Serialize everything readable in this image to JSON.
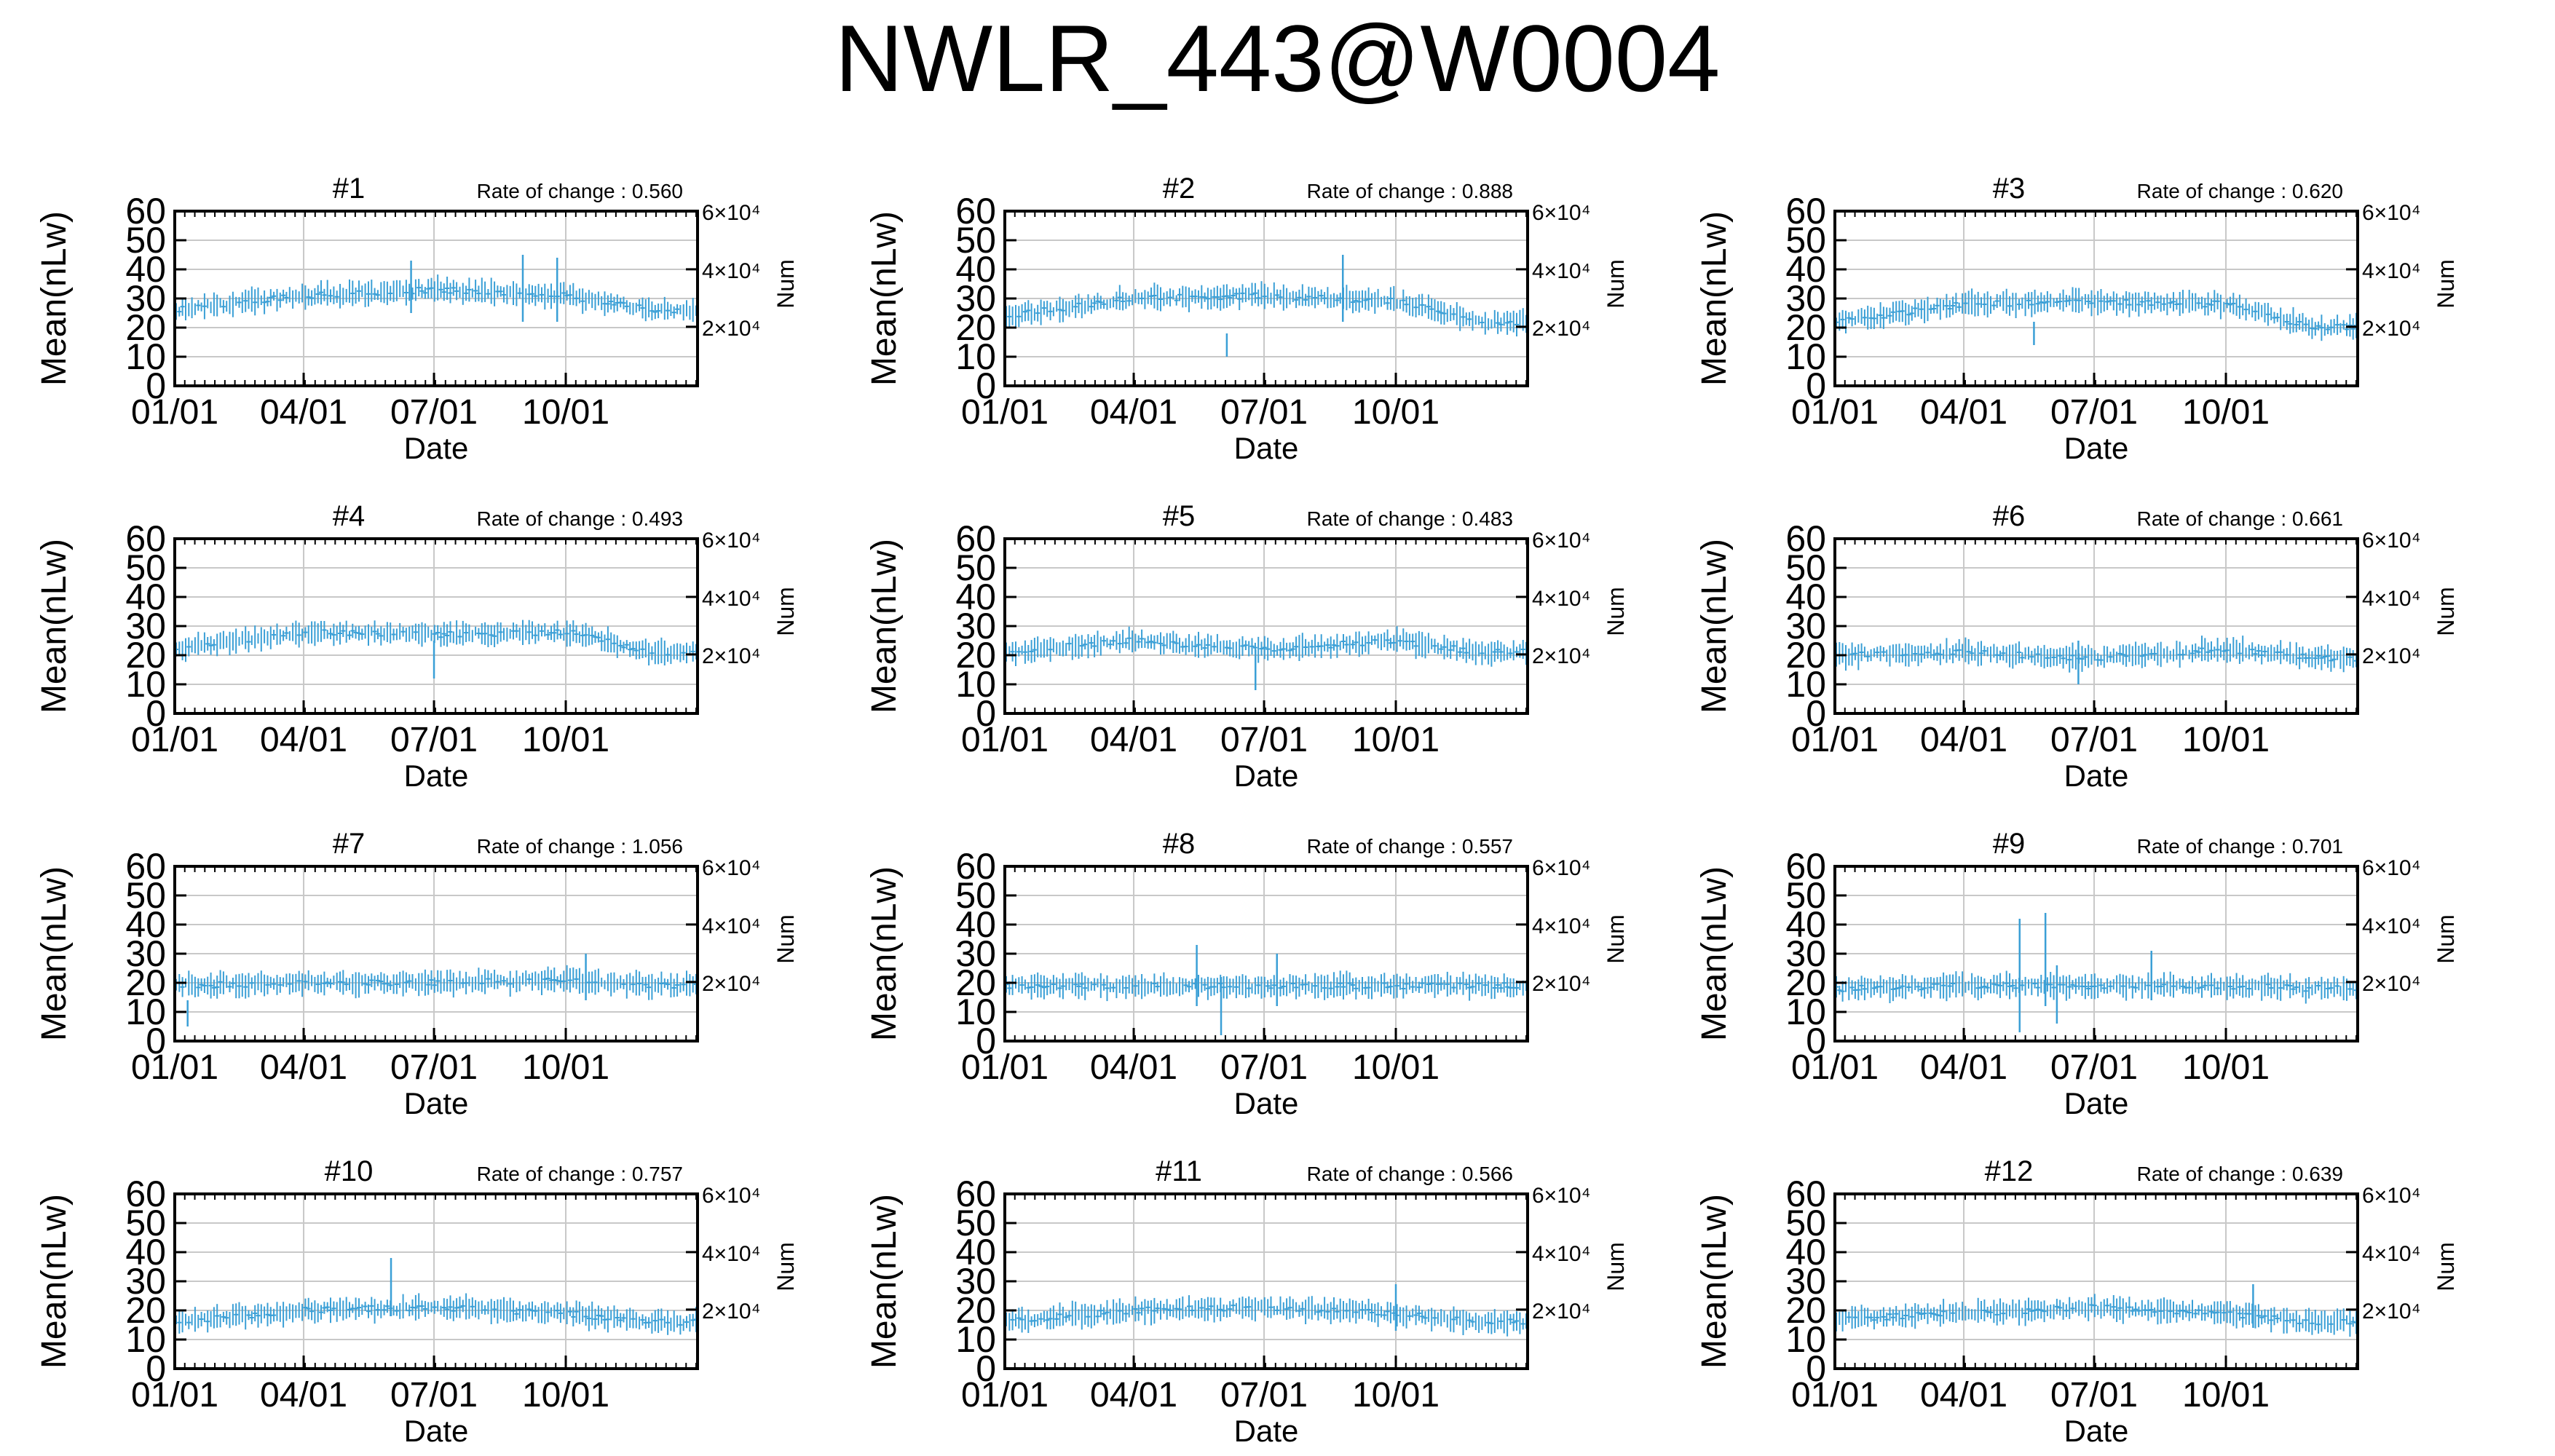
{
  "figure": {
    "title": "NWLR_443@W0004",
    "bar_color": "#3a9fd6",
    "grid_color": "#c8c8c8"
  },
  "chart_data": [
    {
      "type": "errorbar",
      "title": "#1",
      "rate_label": "Rate of change : 0.560",
      "xlabel": "Date",
      "ylabel": "Mean(nLw)",
      "y2label": "Num",
      "xticks": [
        "01/01",
        "04/01",
        "07/01",
        "10/01"
      ],
      "yticks": [
        0,
        10,
        20,
        30,
        40,
        50,
        60
      ],
      "ylim": [
        0,
        60
      ],
      "y2ticks": [
        "2×10⁴",
        "4×10⁴",
        "6×10⁴"
      ],
      "grid": true,
      "mean_profile": [
        {
          "month": "01",
          "value": 26
        },
        {
          "month": "04",
          "value": 31
        },
        {
          "month": "07",
          "value": 33
        },
        {
          "month": "10",
          "value": 31
        },
        {
          "month": "12",
          "value": 26
        }
      ],
      "spread": 6,
      "spikes": [
        {
          "date": "06/15",
          "high": 43,
          "low": 25
        },
        {
          "date": "09/01",
          "high": 45,
          "low": 22
        },
        {
          "date": "09/25",
          "high": 44,
          "low": 22
        }
      ]
    },
    {
      "type": "errorbar",
      "title": "#2",
      "rate_label": "Rate of change : 0.888",
      "xlabel": "Date",
      "ylabel": "Mean(nLw)",
      "y2label": "Num",
      "xticks": [
        "01/01",
        "04/01",
        "07/01",
        "10/01"
      ],
      "yticks": [
        0,
        10,
        20,
        30,
        40,
        50,
        60
      ],
      "ylim": [
        0,
        60
      ],
      "y2ticks": [
        "2×10⁴",
        "4×10⁴",
        "6×10⁴"
      ],
      "grid": true,
      "mean_profile": [
        {
          "month": "01",
          "value": 24
        },
        {
          "month": "04",
          "value": 30
        },
        {
          "month": "07",
          "value": 31
        },
        {
          "month": "10",
          "value": 29
        },
        {
          "month": "12",
          "value": 22
        }
      ],
      "spread": 6,
      "spikes": [
        {
          "date": "06/05",
          "high": 18,
          "low": 10
        },
        {
          "date": "08/25",
          "high": 45,
          "low": 22
        }
      ]
    },
    {
      "type": "errorbar",
      "title": "#3",
      "rate_label": "Rate of change : 0.620",
      "xlabel": "Date",
      "ylabel": "Mean(nLw)",
      "y2label": "Num",
      "xticks": [
        "01/01",
        "04/01",
        "07/01",
        "10/01"
      ],
      "yticks": [
        0,
        10,
        20,
        30,
        40,
        50,
        60
      ],
      "ylim": [
        0,
        60
      ],
      "y2ticks": [
        "2×10⁴",
        "4×10⁴",
        "6×10⁴"
      ],
      "grid": true,
      "mean_profile": [
        {
          "month": "01",
          "value": 22
        },
        {
          "month": "04",
          "value": 28
        },
        {
          "month": "07",
          "value": 29
        },
        {
          "month": "10",
          "value": 28
        },
        {
          "month": "12",
          "value": 20
        }
      ],
      "spread": 6,
      "spikes": [
        {
          "date": "05/20",
          "high": 22,
          "low": 14
        }
      ]
    },
    {
      "type": "errorbar",
      "title": "#4",
      "rate_label": "Rate of change : 0.493",
      "xlabel": "Date",
      "ylabel": "Mean(nLw)",
      "y2label": "Num",
      "xticks": [
        "01/01",
        "04/01",
        "07/01",
        "10/01"
      ],
      "yticks": [
        0,
        10,
        20,
        30,
        40,
        50,
        60
      ],
      "ylim": [
        0,
        60
      ],
      "y2ticks": [
        "2×10⁴",
        "4×10⁴",
        "6×10⁴"
      ],
      "grid": true,
      "mean_profile": [
        {
          "month": "01",
          "value": 22
        },
        {
          "month": "04",
          "value": 28
        },
        {
          "month": "07",
          "value": 27
        },
        {
          "month": "10",
          "value": 28
        },
        {
          "month": "12",
          "value": 21
        }
      ],
      "spread": 6,
      "spikes": [
        {
          "date": "07/01",
          "high": 25,
          "low": 12
        }
      ]
    },
    {
      "type": "errorbar",
      "title": "#5",
      "rate_label": "Rate of change : 0.483",
      "xlabel": "Date",
      "ylabel": "Mean(nLw)",
      "y2label": "Num",
      "xticks": [
        "01/01",
        "04/01",
        "07/01",
        "10/01"
      ],
      "yticks": [
        0,
        10,
        20,
        30,
        40,
        50,
        60
      ],
      "ylim": [
        0,
        60
      ],
      "y2ticks": [
        "2×10⁴",
        "4×10⁴",
        "6×10⁴"
      ],
      "grid": true,
      "mean_profile": [
        {
          "month": "01",
          "value": 21
        },
        {
          "month": "04",
          "value": 25
        },
        {
          "month": "07",
          "value": 22
        },
        {
          "month": "10",
          "value": 25
        },
        {
          "month": "12",
          "value": 21
        }
      ],
      "spread": 6,
      "spikes": [
        {
          "date": "06/25",
          "high": 22,
          "low": 8
        }
      ]
    },
    {
      "type": "errorbar",
      "title": "#6",
      "rate_label": "Rate of change : 0.661",
      "xlabel": "Date",
      "ylabel": "Mean(nLw)",
      "y2label": "Num",
      "xticks": [
        "01/01",
        "04/01",
        "07/01",
        "10/01"
      ],
      "yticks": [
        0,
        10,
        20,
        30,
        40,
        50,
        60
      ],
      "ylim": [
        0,
        60
      ],
      "y2ticks": [
        "2×10⁴",
        "4×10⁴",
        "6×10⁴"
      ],
      "grid": true,
      "mean_profile": [
        {
          "month": "01",
          "value": 20
        },
        {
          "month": "04",
          "value": 21
        },
        {
          "month": "07",
          "value": 19
        },
        {
          "month": "10",
          "value": 22
        },
        {
          "month": "12",
          "value": 19
        }
      ],
      "spread": 6,
      "spikes": [
        {
          "date": "06/20",
          "high": 25,
          "low": 10
        }
      ]
    },
    {
      "type": "errorbar",
      "title": "#7",
      "rate_label": "Rate of change : 1.056",
      "xlabel": "Date",
      "ylabel": "Mean(nLw)",
      "y2label": "Num",
      "xticks": [
        "01/01",
        "04/01",
        "07/01",
        "10/01"
      ],
      "yticks": [
        0,
        10,
        20,
        30,
        40,
        50,
        60
      ],
      "ylim": [
        0,
        60
      ],
      "y2ticks": [
        "2×10⁴",
        "4×10⁴",
        "6×10⁴"
      ],
      "grid": true,
      "mean_profile": [
        {
          "month": "01",
          "value": 19
        },
        {
          "month": "04",
          "value": 20
        },
        {
          "month": "07",
          "value": 20
        },
        {
          "month": "10",
          "value": 21
        },
        {
          "month": "12",
          "value": 19
        }
      ],
      "spread": 6,
      "spikes": [
        {
          "date": "01/10",
          "high": 14,
          "low": 5
        },
        {
          "date": "10/15",
          "high": 30,
          "low": 14
        }
      ]
    },
    {
      "type": "errorbar",
      "title": "#8",
      "rate_label": "Rate of change : 0.557",
      "xlabel": "Date",
      "ylabel": "Mean(nLw)",
      "y2label": "Num",
      "xticks": [
        "01/01",
        "04/01",
        "07/01",
        "10/01"
      ],
      "yticks": [
        0,
        10,
        20,
        30,
        40,
        50,
        60
      ],
      "ylim": [
        0,
        60
      ],
      "y2ticks": [
        "2×10⁴",
        "4×10⁴",
        "6×10⁴"
      ],
      "grid": true,
      "mean_profile": [
        {
          "month": "01",
          "value": 19
        },
        {
          "month": "04",
          "value": 19
        },
        {
          "month": "07",
          "value": 19
        },
        {
          "month": "10",
          "value": 19
        },
        {
          "month": "12",
          "value": 19
        }
      ],
      "spread": 6,
      "spikes": [
        {
          "date": "05/15",
          "high": 33,
          "low": 12
        },
        {
          "date": "06/01",
          "high": 22,
          "low": 2
        },
        {
          "date": "07/10",
          "high": 30,
          "low": 12
        }
      ]
    },
    {
      "type": "errorbar",
      "title": "#9",
      "rate_label": "Rate of change : 0.701",
      "xlabel": "Date",
      "ylabel": "Mean(nLw)",
      "y2label": "Num",
      "xticks": [
        "01/01",
        "04/01",
        "07/01",
        "10/01"
      ],
      "yticks": [
        0,
        10,
        20,
        30,
        40,
        50,
        60
      ],
      "ylim": [
        0,
        60
      ],
      "y2ticks": [
        "2×10⁴",
        "4×10⁴",
        "6×10⁴"
      ],
      "grid": true,
      "mean_profile": [
        {
          "month": "01",
          "value": 18
        },
        {
          "month": "04",
          "value": 19
        },
        {
          "month": "07",
          "value": 19
        },
        {
          "month": "10",
          "value": 19
        },
        {
          "month": "12",
          "value": 18
        }
      ],
      "spread": 6,
      "spikes": [
        {
          "date": "05/10",
          "high": 42,
          "low": 3
        },
        {
          "date": "05/28",
          "high": 44,
          "low": 12
        },
        {
          "date": "06/05",
          "high": 26,
          "low": 6
        },
        {
          "date": "08/10",
          "high": 31,
          "low": 14
        }
      ]
    },
    {
      "type": "errorbar",
      "title": "#10",
      "rate_label": "Rate of change : 0.757",
      "xlabel": "Date",
      "ylabel": "Mean(nLw)",
      "y2label": "Num",
      "xticks": [
        "01/01",
        "04/01",
        "07/01",
        "10/01"
      ],
      "yticks": [
        0,
        10,
        20,
        30,
        40,
        50,
        60
      ],
      "ylim": [
        0,
        60
      ],
      "y2ticks": [
        "2×10⁴",
        "4×10⁴",
        "6×10⁴"
      ],
      "grid": true,
      "mean_profile": [
        {
          "month": "01",
          "value": 16
        },
        {
          "month": "04",
          "value": 20
        },
        {
          "month": "07",
          "value": 21
        },
        {
          "month": "10",
          "value": 19
        },
        {
          "month": "12",
          "value": 16
        }
      ],
      "spread": 6,
      "spikes": [
        {
          "date": "06/01",
          "high": 38,
          "low": 18
        }
      ]
    },
    {
      "type": "errorbar",
      "title": "#11",
      "rate_label": "Rate of change : 0.566",
      "xlabel": "Date",
      "ylabel": "Mean(nLw)",
      "y2label": "Num",
      "xticks": [
        "01/01",
        "04/01",
        "07/01",
        "10/01"
      ],
      "yticks": [
        0,
        10,
        20,
        30,
        40,
        50,
        60
      ],
      "ylim": [
        0,
        60
      ],
      "y2ticks": [
        "2×10⁴",
        "4×10⁴",
        "6×10⁴"
      ],
      "grid": true,
      "mean_profile": [
        {
          "month": "01",
          "value": 16
        },
        {
          "month": "04",
          "value": 20
        },
        {
          "month": "07",
          "value": 21
        },
        {
          "month": "10",
          "value": 19
        },
        {
          "month": "12",
          "value": 16
        }
      ],
      "spread": 6,
      "spikes": [
        {
          "date": "10/01",
          "high": 29,
          "low": 13
        }
      ]
    },
    {
      "type": "errorbar",
      "title": "#12",
      "rate_label": "Rate of change : 0.639",
      "xlabel": "Date",
      "ylabel": "Mean(nLw)",
      "y2label": "Num",
      "xticks": [
        "01/01",
        "04/01",
        "07/01",
        "10/01"
      ],
      "yticks": [
        0,
        10,
        20,
        30,
        40,
        50,
        60
      ],
      "ylim": [
        0,
        60
      ],
      "y2ticks": [
        "2×10⁴",
        "4×10⁴",
        "6×10⁴"
      ],
      "grid": true,
      "mean_profile": [
        {
          "month": "01",
          "value": 17
        },
        {
          "month": "04",
          "value": 19
        },
        {
          "month": "07",
          "value": 21
        },
        {
          "month": "10",
          "value": 19
        },
        {
          "month": "12",
          "value": 16
        }
      ],
      "spread": 6,
      "spikes": [
        {
          "date": "10/20",
          "high": 29,
          "low": 14
        }
      ]
    }
  ]
}
